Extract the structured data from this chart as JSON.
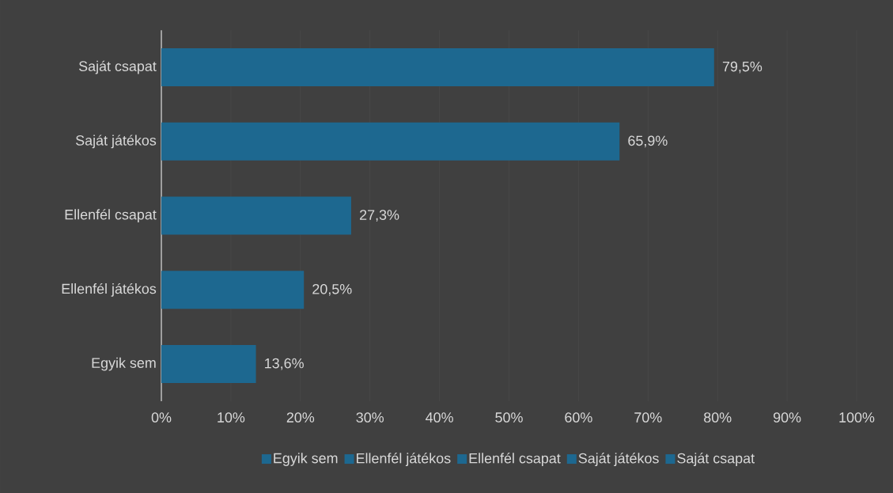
{
  "chart_data": {
    "type": "bar",
    "orientation": "horizontal",
    "categories": [
      "Saját csapat",
      "Saját játékos",
      "Ellenfél csapat",
      "Ellenfél játékos",
      "Egyik sem"
    ],
    "series": [
      {
        "name": "Egyik sem",
        "color": "#1d6890",
        "values": [
          null,
          null,
          null,
          null,
          13.6
        ],
        "value_labels": [
          null,
          null,
          null,
          null,
          "13,6%"
        ]
      },
      {
        "name": "Ellenfél játékos",
        "color": "#1d6890",
        "values": [
          null,
          null,
          null,
          20.5,
          null
        ],
        "value_labels": [
          null,
          null,
          null,
          "20,5%",
          null
        ]
      },
      {
        "name": "Ellenfél csapat",
        "color": "#1d6890",
        "values": [
          null,
          null,
          27.3,
          null,
          null
        ],
        "value_labels": [
          null,
          null,
          "27,3%",
          null,
          null
        ]
      },
      {
        "name": "Saját játékos",
        "color": "#1d6890",
        "values": [
          null,
          65.9,
          null,
          null,
          null
        ],
        "value_labels": [
          null,
          "65,9%",
          null,
          null,
          null
        ]
      },
      {
        "name": "Saját csapat",
        "color": "#1d6890",
        "values": [
          79.5,
          null,
          null,
          null,
          null
        ],
        "value_labels": [
          "79,5%",
          null,
          null,
          null,
          null
        ]
      }
    ],
    "xlim": [
      0,
      100
    ],
    "xticks": [
      {
        "value": 0,
        "label": "0%"
      },
      {
        "value": 10,
        "label": "10%"
      },
      {
        "value": 20,
        "label": "20%"
      },
      {
        "value": 30,
        "label": "30%"
      },
      {
        "value": 40,
        "label": "40%"
      },
      {
        "value": 50,
        "label": "50%"
      },
      {
        "value": 60,
        "label": "60%"
      },
      {
        "value": 70,
        "label": "70%"
      },
      {
        "value": 80,
        "label": "80%"
      },
      {
        "value": 90,
        "label": "90%"
      },
      {
        "value": 100,
        "label": "100%"
      }
    ],
    "grid": "x",
    "legend": "bottom"
  }
}
